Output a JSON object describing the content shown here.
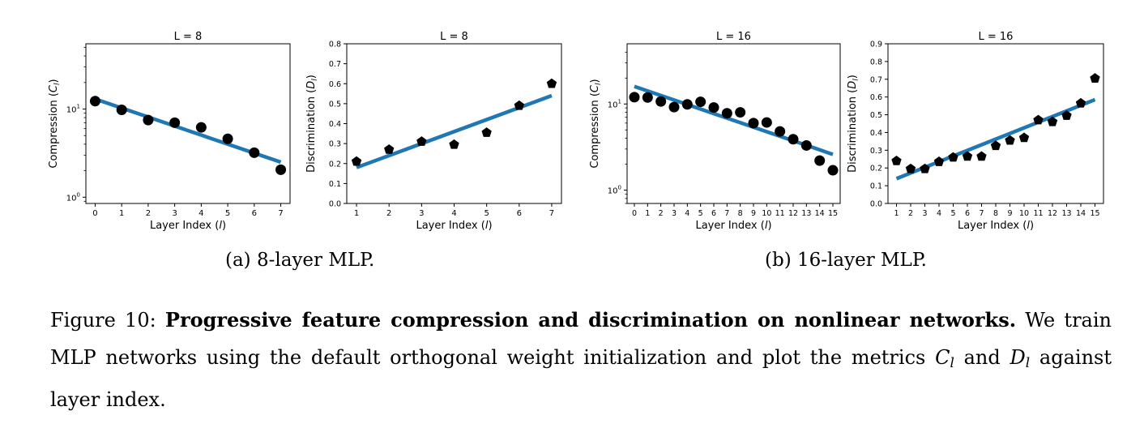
{
  "charts": [
    {
      "type": "scatter",
      "title": "L = 8",
      "xlabel_prefix": "Layer Index (",
      "xlabel_var": "l",
      "xlabel_suffix": ")",
      "ylabel_prefix": "Compression (",
      "ylabel_var": "C",
      "ylabel_sub": "l",
      "ylabel_suffix": ")",
      "yscale": "log",
      "x": [
        0,
        1,
        2,
        3,
        4,
        5,
        6,
        7
      ],
      "values": [
        12.3,
        9.8,
        7.5,
        7.0,
        6.2,
        4.6,
        3.2,
        2.05
      ],
      "fit": [
        [
          0,
          13.0
        ],
        [
          7,
          2.5
        ]
      ],
      "xlim": [
        -0.35,
        7.35
      ],
      "ylim": [
        0.85,
        55
      ],
      "xticks": [
        0,
        1,
        2,
        3,
        4,
        5,
        6,
        7
      ],
      "yticks": [
        {
          "v": 1,
          "base": "10",
          "exp": "0"
        },
        {
          "v": 10,
          "base": "10",
          "exp": "1"
        }
      ],
      "marker": "circle"
    },
    {
      "type": "scatter",
      "title": "L = 8",
      "xlabel_prefix": "Layer Index (",
      "xlabel_var": "l",
      "xlabel_suffix": ")",
      "ylabel_prefix": "Discrimination (",
      "ylabel_var": "D",
      "ylabel_sub": "l",
      "ylabel_suffix": ")",
      "yscale": "linear",
      "x": [
        1,
        2,
        3,
        4,
        5,
        6,
        7
      ],
      "values": [
        0.21,
        0.27,
        0.31,
        0.295,
        0.355,
        0.49,
        0.6
      ],
      "fit": [
        [
          1,
          0.18
        ],
        [
          7,
          0.54
        ]
      ],
      "xlim": [
        0.7,
        7.3
      ],
      "ylim": [
        0,
        0.8
      ],
      "xticks": [
        1,
        2,
        3,
        4,
        5,
        6,
        7
      ],
      "yticks": [
        "0.0",
        "0.1",
        "0.2",
        "0.3",
        "0.4",
        "0.5",
        "0.6",
        "0.7",
        "0.8"
      ],
      "marker": "pentagon"
    },
    {
      "type": "scatter",
      "title": "L = 16",
      "xlabel_prefix": "Layer Index (",
      "xlabel_var": "l",
      "xlabel_suffix": ")",
      "ylabel_prefix": "Compression (",
      "ylabel_var": "C",
      "ylabel_sub": "l",
      "ylabel_suffix": ")",
      "yscale": "log",
      "x": [
        0,
        1,
        2,
        3,
        4,
        5,
        6,
        7,
        8,
        9,
        10,
        11,
        12,
        13,
        14,
        15
      ],
      "values": [
        12.0,
        11.9,
        10.7,
        9.2,
        9.9,
        10.6,
        9.1,
        7.8,
        8.0,
        6.0,
        6.1,
        4.8,
        3.9,
        3.3,
        2.2,
        1.7
      ],
      "fit": [
        [
          0,
          16.0
        ],
        [
          15,
          2.6
        ]
      ],
      "xlim": [
        -0.55,
        15.55
      ],
      "ylim": [
        0.7,
        50
      ],
      "xticks": [
        0,
        1,
        2,
        3,
        4,
        5,
        6,
        7,
        8,
        9,
        10,
        11,
        12,
        13,
        14,
        15
      ],
      "yticks": [
        {
          "v": 1,
          "base": "10",
          "exp": "0"
        },
        {
          "v": 10,
          "base": "10",
          "exp": "1"
        }
      ],
      "marker": "circle"
    },
    {
      "type": "scatter",
      "title": "L = 16",
      "xlabel_prefix": "Layer Index (",
      "xlabel_var": "l",
      "xlabel_suffix": ")",
      "ylabel_prefix": "Discrimination (",
      "ylabel_var": "D",
      "ylabel_sub": "l",
      "ylabel_suffix": ")",
      "yscale": "linear",
      "x": [
        1,
        2,
        3,
        4,
        5,
        6,
        7,
        8,
        9,
        10,
        11,
        12,
        13,
        14,
        15
      ],
      "values": [
        0.24,
        0.195,
        0.195,
        0.235,
        0.26,
        0.265,
        0.265,
        0.325,
        0.355,
        0.37,
        0.47,
        0.46,
        0.495,
        0.565,
        0.705
      ],
      "fit": [
        [
          1,
          0.14
        ],
        [
          15,
          0.585
        ]
      ],
      "xlim": [
        0.4,
        15.6
      ],
      "ylim": [
        0,
        0.9
      ],
      "xticks": [
        1,
        2,
        3,
        4,
        5,
        6,
        7,
        8,
        9,
        10,
        11,
        12,
        13,
        14,
        15
      ],
      "yticks": [
        "0.0",
        "0.1",
        "0.2",
        "0.3",
        "0.4",
        "0.5",
        "0.6",
        "0.7",
        "0.8",
        "0.9"
      ],
      "marker": "pentagon"
    }
  ],
  "subcaptions": {
    "a": "(a) 8-layer MLP.",
    "b": "(b) 16-layer MLP."
  },
  "caption": {
    "label": "Figure 10:",
    "title": "Progressive feature compression and discrimination on nonlinear networks.",
    "body1": "We train MLP networks using the default orthogonal weight initialization and plot the metrics",
    "var1": "C",
    "sub1": "l",
    "body2": "and",
    "var2": "D",
    "sub2": "l",
    "body3": "against layer index."
  },
  "colors": {
    "fit_line": "#1f77b4",
    "marker": "#000000",
    "axis": "#000000"
  }
}
